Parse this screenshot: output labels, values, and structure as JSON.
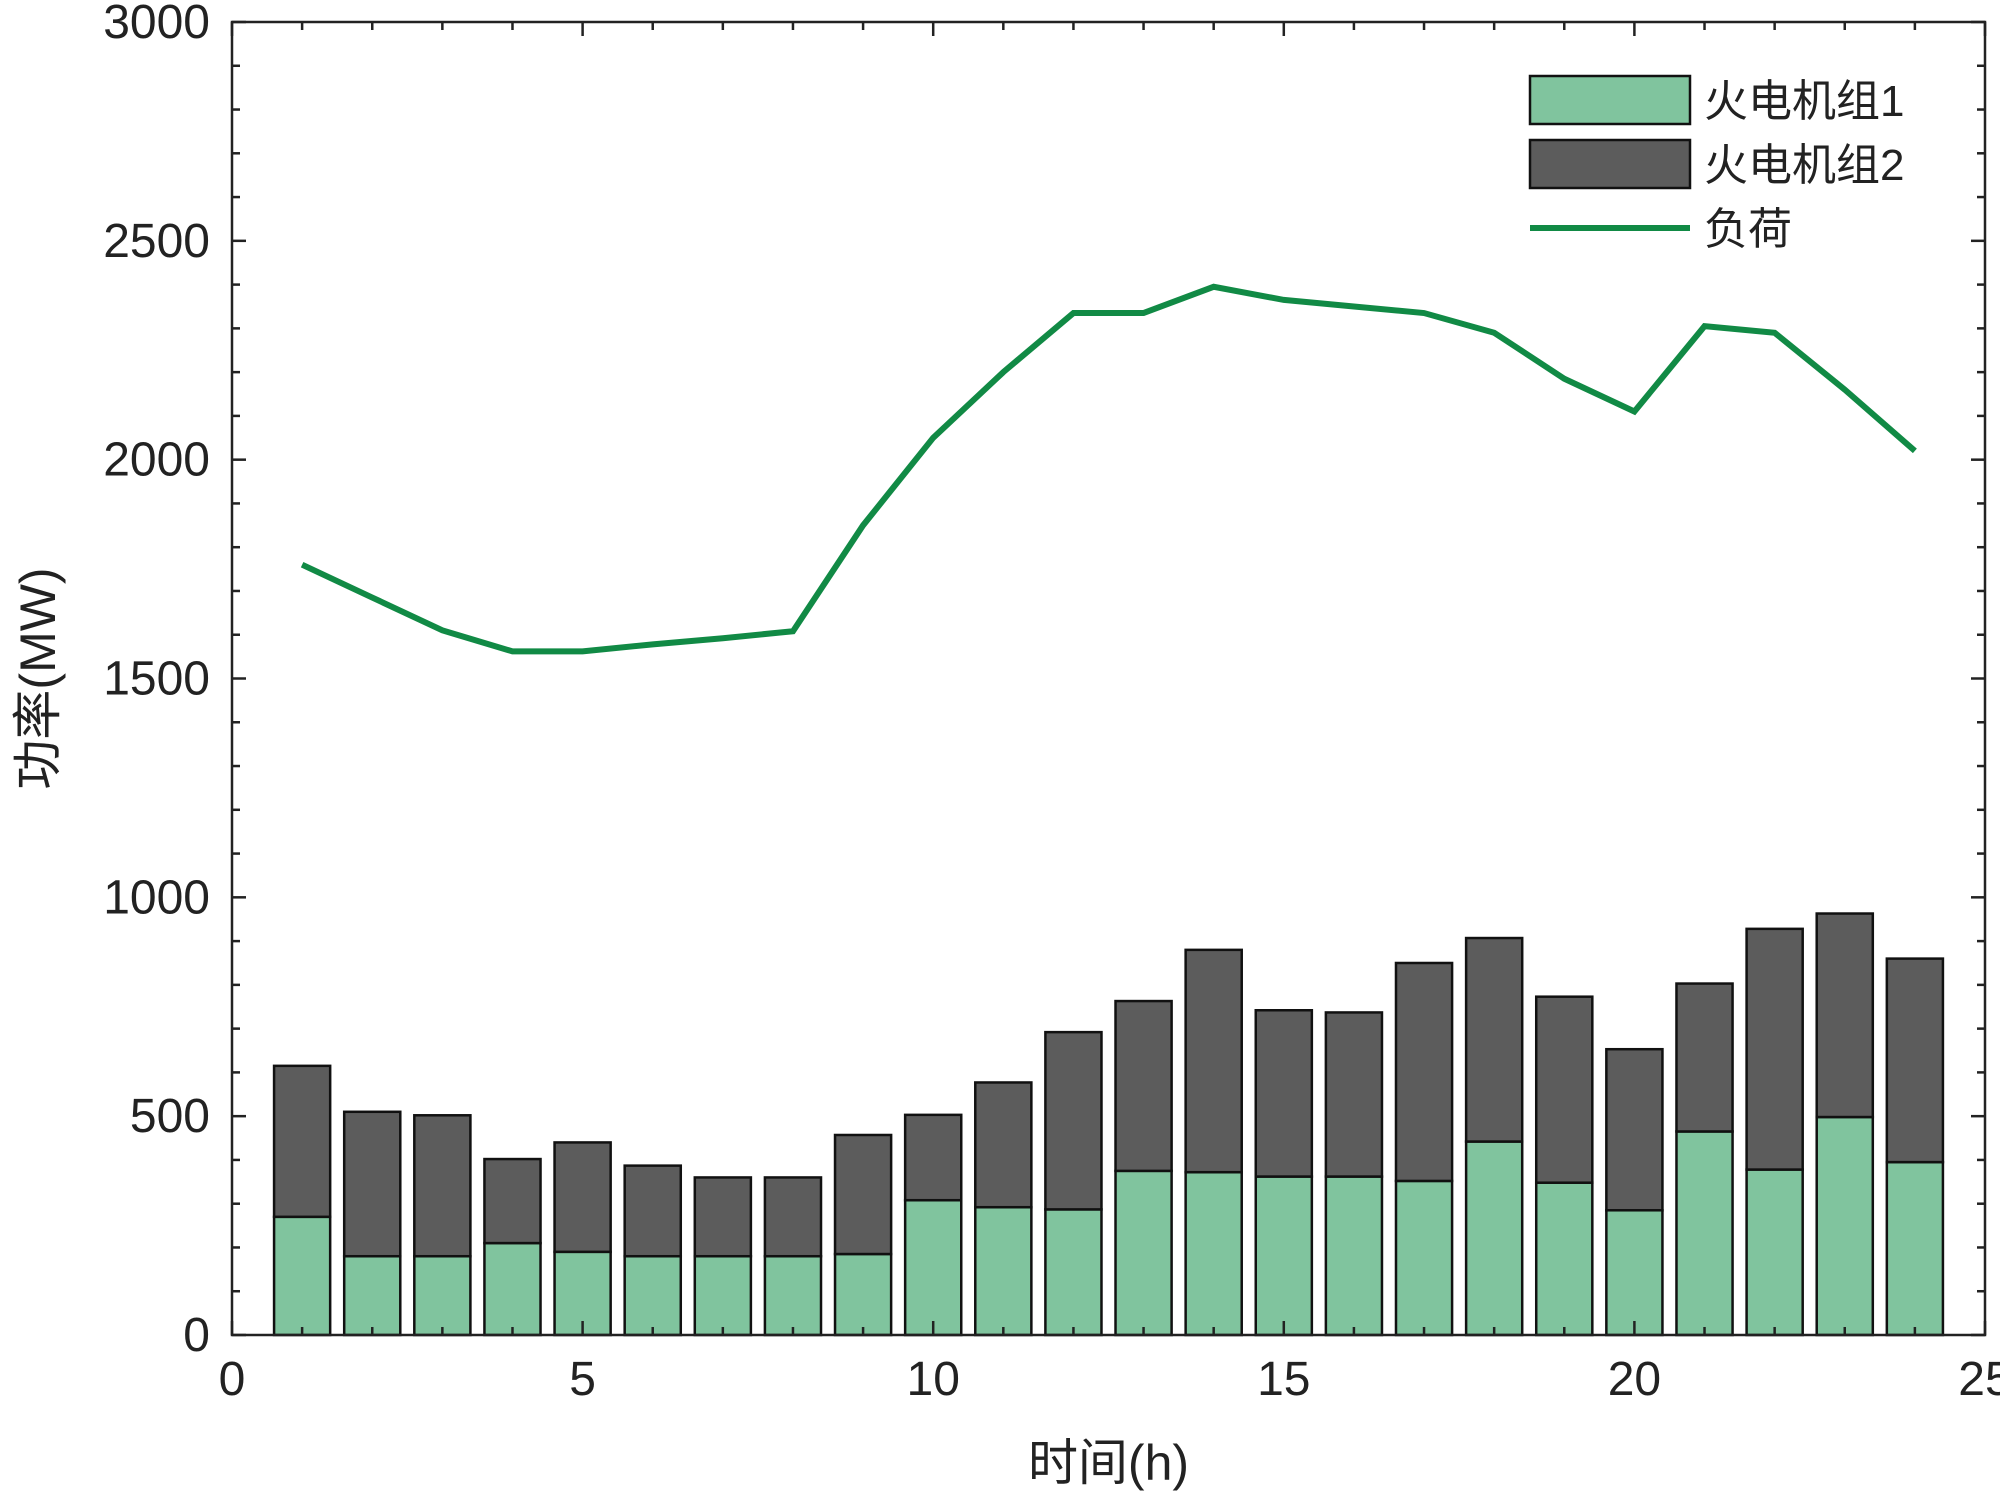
{
  "chart_data": {
    "type": "bar",
    "xlabel": "时间(h)",
    "ylabel": "功率(MW)",
    "xlim": [
      0,
      25
    ],
    "ylim": [
      0,
      3000
    ],
    "x_ticks": [
      "0",
      "5",
      "10",
      "15",
      "20",
      "25"
    ],
    "y_ticks": [
      "0",
      "500",
      "1000",
      "1500",
      "2000",
      "2500",
      "3000"
    ],
    "grid": false,
    "legend_position": "top-right",
    "x": [
      1,
      2,
      3,
      4,
      5,
      6,
      7,
      8,
      9,
      10,
      11,
      12,
      13,
      14,
      15,
      16,
      17,
      18,
      19,
      20,
      21,
      22,
      23,
      24
    ],
    "stacked": true,
    "series": [
      {
        "name": "火电机组1",
        "type": "bar",
        "color": "#80c49e",
        "values": [
          270,
          180,
          180,
          210,
          190,
          180,
          180,
          180,
          185,
          308,
          292,
          287,
          375,
          372,
          362,
          362,
          352,
          442,
          348,
          285,
          465,
          378,
          498,
          395
        ]
      },
      {
        "name": "火电机组2",
        "type": "bar",
        "color": "#5c5c5c",
        "values": [
          345,
          330,
          322,
          192,
          250,
          207,
          180,
          180,
          272,
          195,
          285,
          405,
          388,
          508,
          380,
          375,
          498,
          465,
          425,
          368,
          338,
          550,
          465,
          465
        ]
      },
      {
        "name": "负荷",
        "type": "line",
        "color": "#118a45",
        "values": [
          1760,
          1685,
          1610,
          1562,
          1562,
          1578,
          1592,
          1608,
          1850,
          2050,
          2200,
          2335,
          2335,
          2395,
          2365,
          2350,
          2335,
          2290,
          2185,
          2110,
          2305,
          2290,
          2160,
          2020
        ]
      }
    ]
  }
}
